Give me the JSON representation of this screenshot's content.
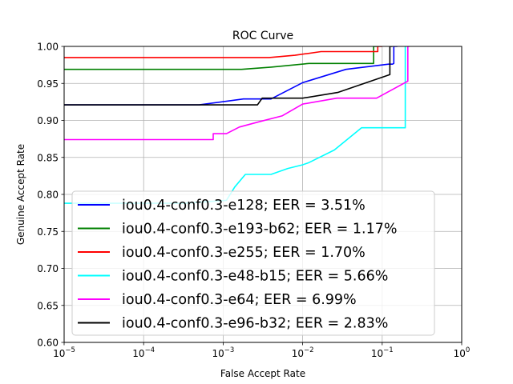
{
  "chart_data": {
    "type": "line",
    "title": "ROC Curve",
    "xlabel": "False Accept Rate",
    "ylabel": "Genuine Accept Rate",
    "xscale": "log",
    "xlim": [
      1e-05,
      1
    ],
    "ylim": [
      0.6,
      1.0
    ],
    "grid": true,
    "legend_position": "lower-left",
    "x_ticks": [
      {
        "value": 1e-05,
        "base": "10",
        "exp": "−5"
      },
      {
        "value": 0.0001,
        "base": "10",
        "exp": "−4"
      },
      {
        "value": 0.001,
        "base": "10",
        "exp": "−3"
      },
      {
        "value": 0.01,
        "base": "10",
        "exp": "−2"
      },
      {
        "value": 0.1,
        "base": "10",
        "exp": "−1"
      },
      {
        "value": 1,
        "base": "10",
        "exp": "0"
      }
    ],
    "y_ticks": [
      {
        "value": 0.6,
        "label": "0.60"
      },
      {
        "value": 0.65,
        "label": "0.65"
      },
      {
        "value": 0.7,
        "label": "0.70"
      },
      {
        "value": 0.75,
        "label": "0.75"
      },
      {
        "value": 0.8,
        "label": "0.80"
      },
      {
        "value": 0.85,
        "label": "0.85"
      },
      {
        "value": 0.9,
        "label": "0.90"
      },
      {
        "value": 0.95,
        "label": "0.95"
      },
      {
        "value": 1.0,
        "label": "1.00"
      }
    ],
    "series": [
      {
        "name": "iou0.4-conf0.3-e128; EER = 3.51%",
        "color": "#0000ff",
        "points": [
          [
            1e-05,
            0.921
          ],
          [
            0.0005,
            0.921
          ],
          [
            0.0018,
            0.929
          ],
          [
            0.004,
            0.929
          ],
          [
            0.01,
            0.951
          ],
          [
            0.035,
            0.969
          ],
          [
            0.12,
            0.976
          ],
          [
            0.135,
            0.976
          ],
          [
            0.14,
            0.977
          ],
          [
            0.14,
            1.0
          ],
          [
            0.155,
            1.0
          ]
        ]
      },
      {
        "name": "iou0.4-conf0.3-e193-b62; EER = 1.17%",
        "color": "#008000",
        "points": [
          [
            1e-05,
            0.969
          ],
          [
            0.0017,
            0.969
          ],
          [
            0.004,
            0.972
          ],
          [
            0.012,
            0.977
          ],
          [
            0.078,
            0.977
          ],
          [
            0.078,
            1.0
          ],
          [
            0.09,
            1.0
          ]
        ]
      },
      {
        "name": "iou0.4-conf0.3-e255; EER = 1.70%",
        "color": "#ff0000",
        "points": [
          [
            1e-05,
            0.985
          ],
          [
            0.0038,
            0.985
          ],
          [
            0.008,
            0.988
          ],
          [
            0.017,
            0.993
          ],
          [
            0.088,
            0.993
          ],
          [
            0.088,
            1.0
          ],
          [
            0.1,
            1.0
          ]
        ]
      },
      {
        "name": "iou0.4-conf0.3-e48-b15; EER = 5.66%",
        "color": "#00ffff",
        "points": [
          [
            1e-05,
            0.788
          ],
          [
            0.00033,
            0.788
          ],
          [
            0.0011,
            0.792
          ],
          [
            0.0014,
            0.81
          ],
          [
            0.0019,
            0.827
          ],
          [
            0.004,
            0.827
          ],
          [
            0.0065,
            0.835
          ],
          [
            0.01,
            0.84
          ],
          [
            0.012,
            0.843
          ],
          [
            0.025,
            0.86
          ],
          [
            0.055,
            0.89
          ],
          [
            0.195,
            0.89
          ],
          [
            0.195,
            1.0
          ],
          [
            0.2,
            1.0
          ]
        ]
      },
      {
        "name": "iou0.4-conf0.3-e64; EER = 6.99%",
        "color": "#ff00ff",
        "points": [
          [
            1e-05,
            0.874
          ],
          [
            0.00075,
            0.874
          ],
          [
            0.00075,
            0.882
          ],
          [
            0.0011,
            0.882
          ],
          [
            0.0016,
            0.891
          ],
          [
            0.0028,
            0.898
          ],
          [
            0.0055,
            0.906
          ],
          [
            0.01,
            0.922
          ],
          [
            0.027,
            0.93
          ],
          [
            0.085,
            0.93
          ],
          [
            0.21,
            0.953
          ],
          [
            0.21,
            1.0
          ],
          [
            0.22,
            1.0
          ]
        ]
      },
      {
        "name": "iou0.4-conf0.3-e96-b32; EER = 2.83%",
        "color": "#000000",
        "points": [
          [
            1e-05,
            0.921
          ],
          [
            0.0027,
            0.921
          ],
          [
            0.0031,
            0.93
          ],
          [
            0.01,
            0.93
          ],
          [
            0.028,
            0.938
          ],
          [
            0.125,
            0.962
          ],
          [
            0.125,
            1.0
          ],
          [
            0.135,
            1.0
          ]
        ]
      }
    ]
  }
}
